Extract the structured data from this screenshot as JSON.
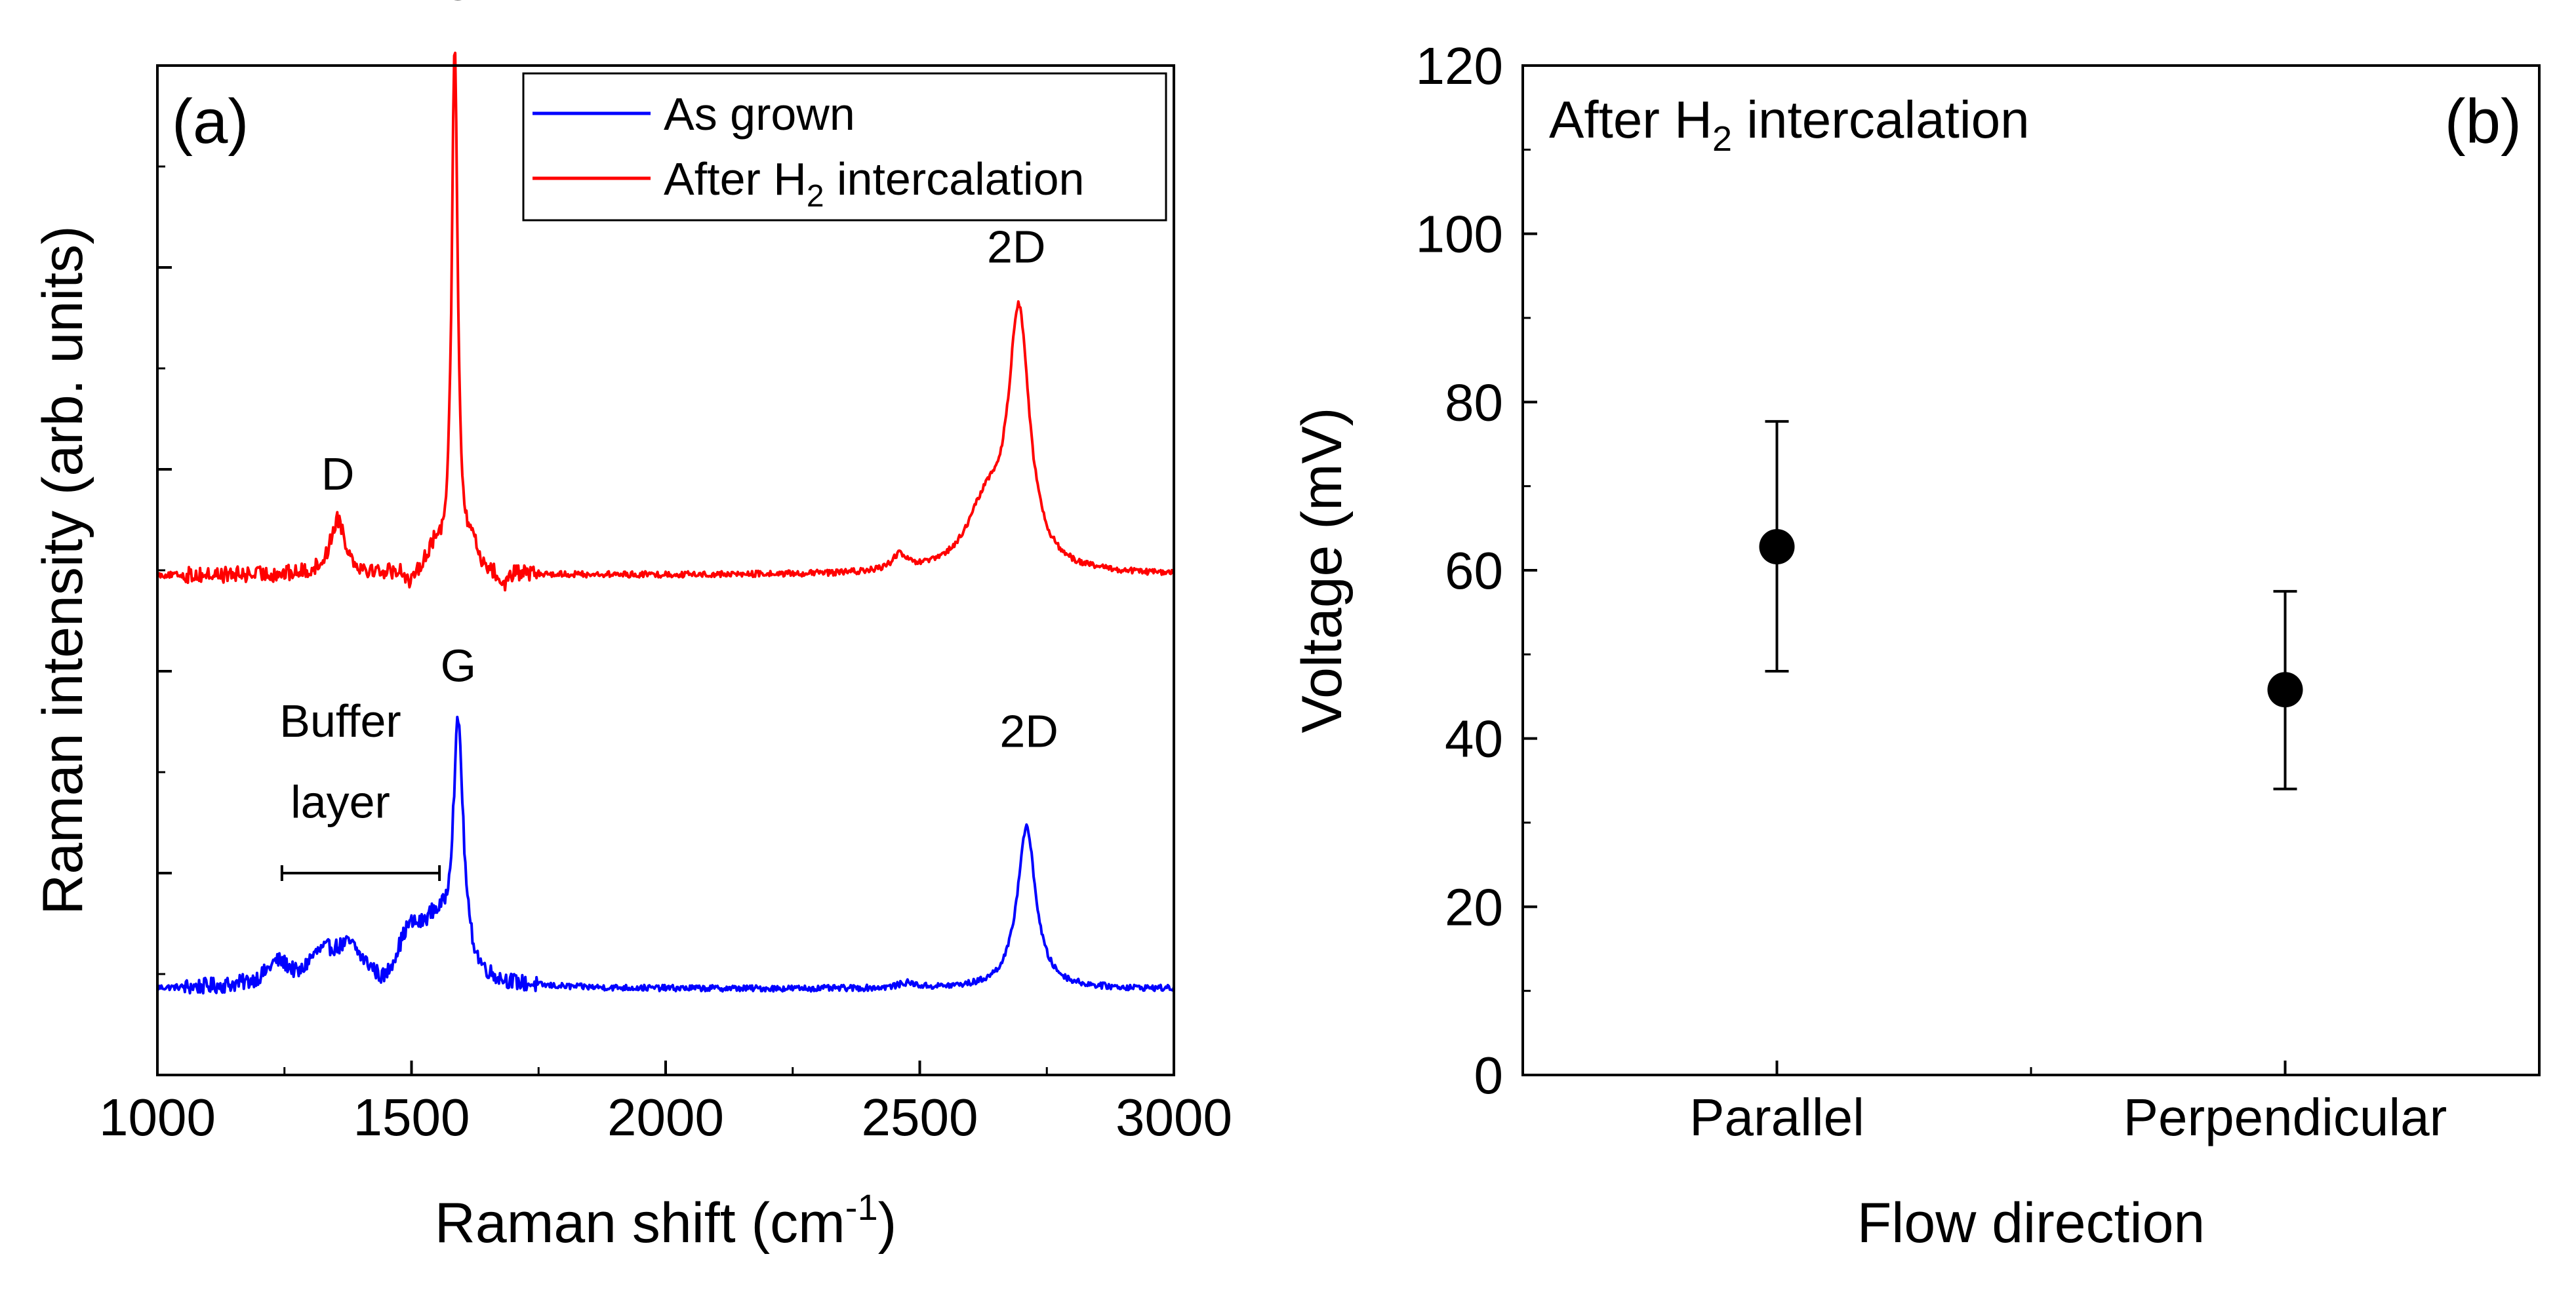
{
  "chart_data": [
    {
      "panel_label": "(a)",
      "type": "line",
      "xlabel": "Raman shift (cm",
      "xlabel_sup": "-1",
      "xlabel_end": ")",
      "ylabel": "Raman intensity (arb. units)",
      "xlim": [
        1000,
        3000
      ],
      "ylim": [
        0,
        10
      ],
      "xticks": [
        1000,
        1500,
        2000,
        2500,
        3000
      ],
      "x_minor_ticks": [
        1250,
        1750,
        2250,
        2750
      ],
      "yticks": [
        1,
        2,
        3,
        4,
        5,
        6,
        7,
        8,
        9,
        10
      ],
      "legend": {
        "placement": "top-right",
        "entries": [
          {
            "label": "As grown",
            "color": "#0000ff"
          },
          {
            "label_main": "After H",
            "label_sub": "2",
            "label_end": " intercalation",
            "color": "#ff0000"
          }
        ]
      },
      "series": [
        {
          "name": "As grown",
          "color": "#0000ff",
          "baseline": 0.85,
          "noise": 0.05,
          "peaks": [
            {
              "center": 1235,
              "height": 0.18,
              "width": 25
            },
            {
              "center": 1330,
              "height": 0.32,
              "width": 55
            },
            {
              "center": 1380,
              "height": 0.22,
              "width": 25
            },
            {
              "center": 1495,
              "height": 0.35,
              "width": 25
            },
            {
              "center": 1545,
              "height": 0.55,
              "width": 40
            },
            {
              "center": 1592,
              "height": 2.4,
              "width": 12
            },
            {
              "center": 2475,
              "height": 0.05,
              "width": 20
            },
            {
              "center": 2710,
              "height": 1.6,
              "width": 22
            }
          ],
          "dips": [
            {
              "center": 1280,
              "depth": 0.08,
              "width": 15
            },
            {
              "center": 1445,
              "depth": 0.12,
              "width": 18
            }
          ]
        },
        {
          "name": "After H2 intercalation",
          "color": "#ff0000",
          "baseline": 4.95,
          "noise": 0.05,
          "peaks": [
            {
              "center": 1355,
              "height": 0.55,
              "width": 18
            },
            {
              "center": 1545,
              "height": 0.2,
              "width": 20
            },
            {
              "center": 1585,
              "height": 5.2,
              "width": 7
            },
            {
              "center": 1620,
              "height": 0.25,
              "width": 10
            },
            {
              "center": 2460,
              "height": 0.15,
              "width": 18
            },
            {
              "center": 2630,
              "height": 0.6,
              "width": 45
            },
            {
              "center": 2695,
              "height": 2.5,
              "width": 25
            }
          ],
          "dips": [
            {
              "center": 1500,
              "depth": 0.15,
              "width": 12
            },
            {
              "center": 1680,
              "depth": 0.12,
              "width": 15
            }
          ]
        }
      ],
      "annotations": [
        {
          "text": "G",
          "x": 1590,
          "y": 10.65
        },
        {
          "text": "D",
          "x": 1355,
          "y": 5.8
        },
        {
          "text": "2D",
          "x": 2690,
          "y": 8.05
        },
        {
          "text": "G",
          "x": 1592,
          "y": 3.9
        },
        {
          "text": "Buffer",
          "x": 1360,
          "y": 3.35
        },
        {
          "text": "layer",
          "x": 1360,
          "y": 2.55
        },
        {
          "text": "2D",
          "x": 2715,
          "y": 3.25
        }
      ],
      "bracket": {
        "x_start": 1245,
        "x_end": 1555,
        "y": 2.0
      }
    },
    {
      "panel_label": "(b)",
      "type": "scatter",
      "title_main": "After H",
      "title_sub": "2",
      "title_end": " intercalation",
      "xlabel": "Flow direction",
      "ylabel": "Voltage (mV)",
      "categories": [
        "Parallel",
        "Perpendicular"
      ],
      "values": [
        62.8,
        45.8
      ],
      "error_low": [
        48,
        34
      ],
      "error_high": [
        77.7,
        57.5
      ],
      "ylim": [
        0,
        120
      ],
      "yticks": [
        0,
        20,
        40,
        60,
        80,
        100,
        120
      ],
      "y_minor_ticks": [
        10,
        30,
        50,
        70,
        90,
        110
      ],
      "marker_color": "#000000"
    }
  ]
}
